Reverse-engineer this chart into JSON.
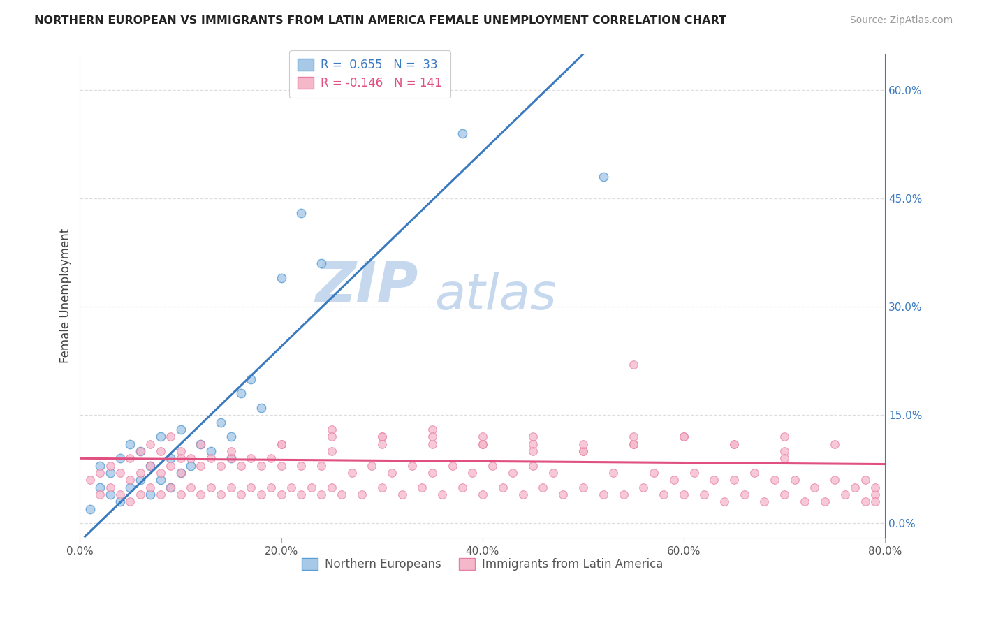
{
  "title": "NORTHERN EUROPEAN VS IMMIGRANTS FROM LATIN AMERICA FEMALE UNEMPLOYMENT CORRELATION CHART",
  "source": "Source: ZipAtlas.com",
  "ylabel": "Female Unemployment",
  "xlim": [
    0.0,
    0.8
  ],
  "ylim": [
    -0.02,
    0.65
  ],
  "xticks": [
    0.0,
    0.2,
    0.4,
    0.6,
    0.8
  ],
  "xticklabels": [
    "0.0%",
    "20.0%",
    "40.0%",
    "60.0%",
    "80.0%"
  ],
  "ytick_vals": [
    0.0,
    0.15,
    0.3,
    0.45,
    0.6
  ],
  "yticklabels_right": [
    "0.0%",
    "15.0%",
    "30.0%",
    "45.0%",
    "60.0%"
  ],
  "blue_color": "#a8c8e8",
  "pink_color": "#f5b8cb",
  "blue_edge_color": "#5a9fd4",
  "pink_edge_color": "#e87da0",
  "blue_line_color": "#3a7abf",
  "pink_line_color": "#e05080",
  "watermark_zip_color": "#c5d8ed",
  "watermark_atlas_color": "#c5d8ed",
  "blue_scatter_x": [
    0.01,
    0.02,
    0.02,
    0.03,
    0.03,
    0.04,
    0.04,
    0.05,
    0.05,
    0.06,
    0.06,
    0.07,
    0.07,
    0.08,
    0.08,
    0.09,
    0.09,
    0.1,
    0.1,
    0.11,
    0.12,
    0.13,
    0.14,
    0.15,
    0.15,
    0.16,
    0.17,
    0.18,
    0.2,
    0.22,
    0.24,
    0.38,
    0.52
  ],
  "blue_scatter_y": [
    0.02,
    0.05,
    0.08,
    0.04,
    0.07,
    0.03,
    0.09,
    0.05,
    0.11,
    0.06,
    0.1,
    0.04,
    0.08,
    0.06,
    0.12,
    0.05,
    0.09,
    0.07,
    0.13,
    0.08,
    0.11,
    0.1,
    0.14,
    0.09,
    0.12,
    0.18,
    0.2,
    0.16,
    0.34,
    0.43,
    0.36,
    0.54,
    0.48
  ],
  "pink_scatter_x": [
    0.01,
    0.02,
    0.02,
    0.03,
    0.03,
    0.04,
    0.04,
    0.05,
    0.05,
    0.05,
    0.06,
    0.06,
    0.06,
    0.07,
    0.07,
    0.07,
    0.08,
    0.08,
    0.08,
    0.09,
    0.09,
    0.09,
    0.1,
    0.1,
    0.1,
    0.11,
    0.11,
    0.12,
    0.12,
    0.12,
    0.13,
    0.13,
    0.14,
    0.14,
    0.15,
    0.15,
    0.16,
    0.16,
    0.17,
    0.17,
    0.18,
    0.18,
    0.19,
    0.19,
    0.2,
    0.2,
    0.21,
    0.22,
    0.22,
    0.23,
    0.24,
    0.24,
    0.25,
    0.26,
    0.27,
    0.28,
    0.29,
    0.3,
    0.31,
    0.32,
    0.33,
    0.34,
    0.35,
    0.36,
    0.37,
    0.38,
    0.39,
    0.4,
    0.41,
    0.42,
    0.43,
    0.44,
    0.45,
    0.46,
    0.47,
    0.48,
    0.5,
    0.52,
    0.53,
    0.54,
    0.55,
    0.56,
    0.57,
    0.58,
    0.59,
    0.6,
    0.61,
    0.62,
    0.63,
    0.64,
    0.65,
    0.66,
    0.67,
    0.68,
    0.69,
    0.7,
    0.71,
    0.72,
    0.73,
    0.74,
    0.75,
    0.76,
    0.77,
    0.78,
    0.78,
    0.79,
    0.79,
    0.79,
    0.3,
    0.35,
    0.4,
    0.45,
    0.5,
    0.55,
    0.6,
    0.65,
    0.7,
    0.2,
    0.25,
    0.3,
    0.35,
    0.4,
    0.45,
    0.5,
    0.55,
    0.6,
    0.65,
    0.7,
    0.75,
    0.25,
    0.3,
    0.35,
    0.4,
    0.45,
    0.5,
    0.55,
    0.1,
    0.15,
    0.2,
    0.25,
    0.7
  ],
  "pink_scatter_y": [
    0.06,
    0.04,
    0.07,
    0.05,
    0.08,
    0.04,
    0.07,
    0.03,
    0.06,
    0.09,
    0.04,
    0.07,
    0.1,
    0.05,
    0.08,
    0.11,
    0.04,
    0.07,
    0.1,
    0.05,
    0.08,
    0.12,
    0.04,
    0.07,
    0.1,
    0.05,
    0.09,
    0.04,
    0.08,
    0.11,
    0.05,
    0.09,
    0.04,
    0.08,
    0.05,
    0.09,
    0.04,
    0.08,
    0.05,
    0.09,
    0.04,
    0.08,
    0.05,
    0.09,
    0.04,
    0.08,
    0.05,
    0.04,
    0.08,
    0.05,
    0.04,
    0.08,
    0.05,
    0.04,
    0.07,
    0.04,
    0.08,
    0.05,
    0.07,
    0.04,
    0.08,
    0.05,
    0.07,
    0.04,
    0.08,
    0.05,
    0.07,
    0.04,
    0.08,
    0.05,
    0.07,
    0.04,
    0.08,
    0.05,
    0.07,
    0.04,
    0.05,
    0.04,
    0.07,
    0.04,
    0.22,
    0.05,
    0.07,
    0.04,
    0.06,
    0.04,
    0.07,
    0.04,
    0.06,
    0.03,
    0.06,
    0.04,
    0.07,
    0.03,
    0.06,
    0.04,
    0.06,
    0.03,
    0.05,
    0.03,
    0.06,
    0.04,
    0.05,
    0.03,
    0.06,
    0.04,
    0.05,
    0.03,
    0.12,
    0.13,
    0.11,
    0.12,
    0.1,
    0.11,
    0.12,
    0.11,
    0.12,
    0.11,
    0.13,
    0.12,
    0.11,
    0.12,
    0.11,
    0.1,
    0.11,
    0.12,
    0.11,
    0.1,
    0.11,
    0.12,
    0.11,
    0.12,
    0.11,
    0.1,
    0.11,
    0.12,
    0.09,
    0.1,
    0.11,
    0.1,
    0.09
  ],
  "blue_line_slope": 1.35,
  "blue_line_intercept": -0.025,
  "pink_line_slope": -0.01,
  "pink_line_intercept": 0.09
}
